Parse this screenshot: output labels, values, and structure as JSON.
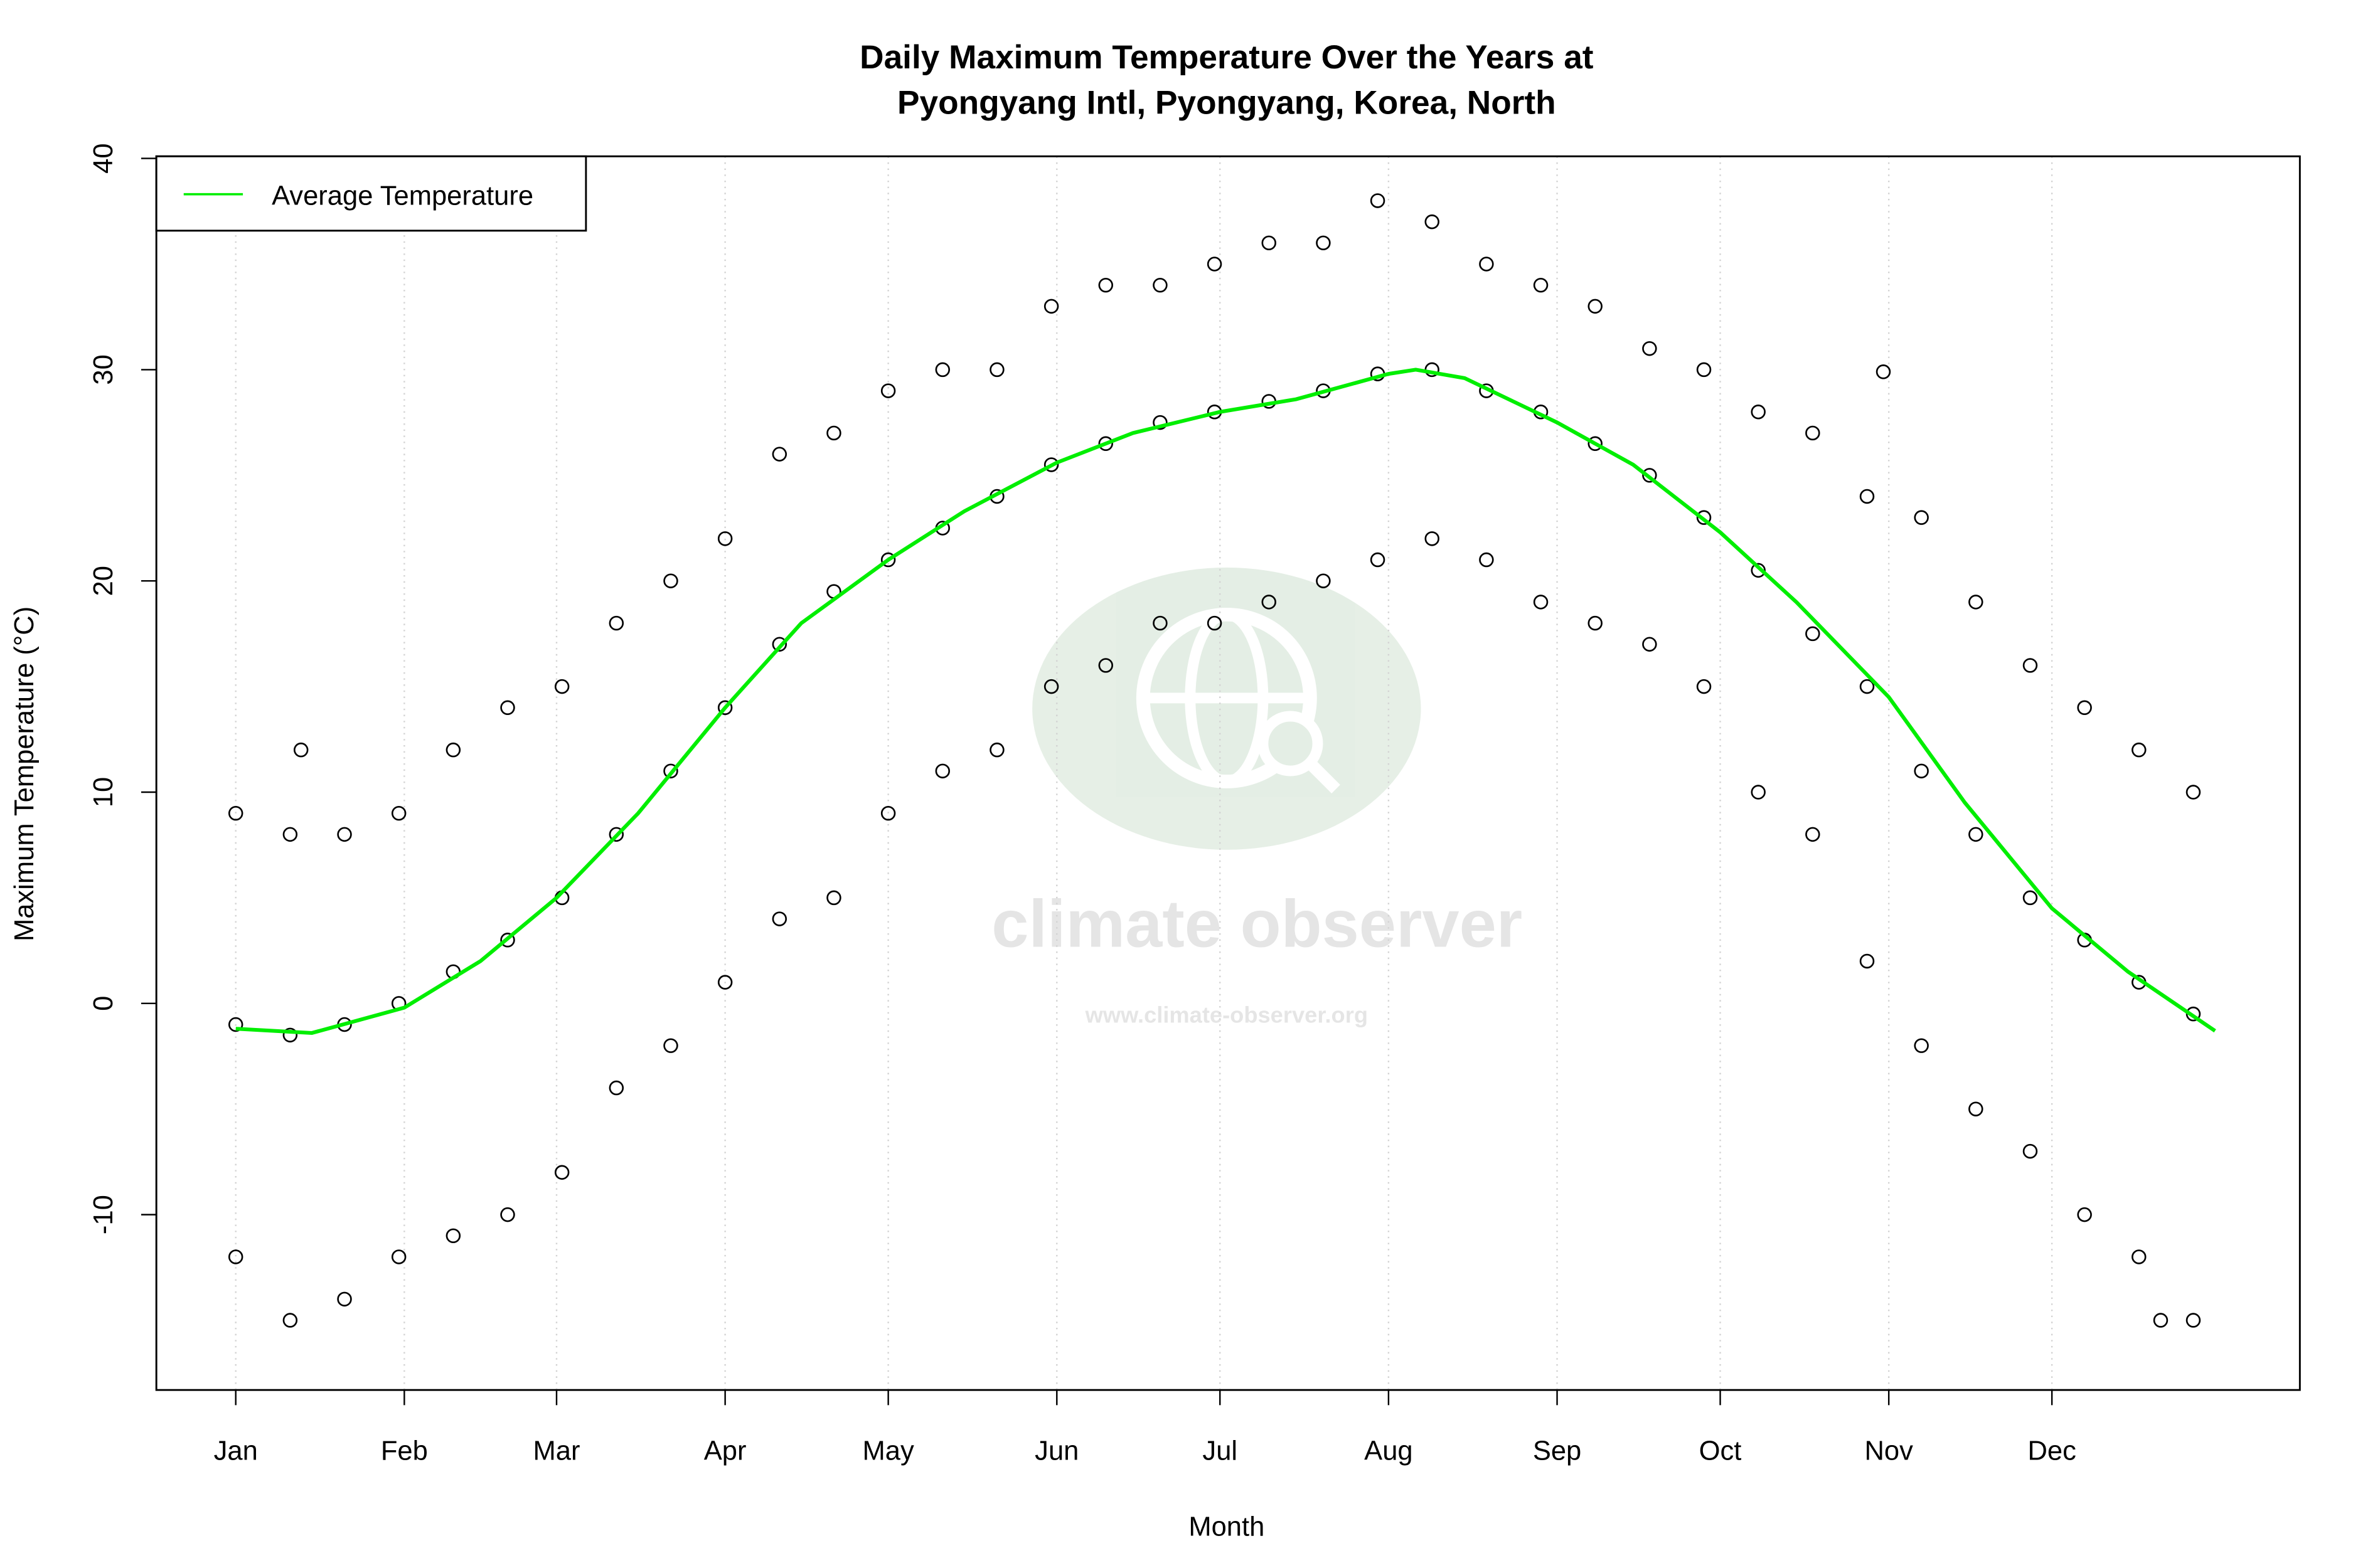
{
  "chart_data": {
    "type": "scatter",
    "title": [
      "Daily Maximum Temperature Over the Years at",
      "Pyongyang Intl, Pyongyang, Korea, North"
    ],
    "xlabel": "Month",
    "ylabel": "Maximum Temperature (°C)",
    "watermark": "climate observer",
    "watermark_url": "www.climate-observer.org",
    "xlim": [
      -13.6,
      380.6
    ],
    "ylim": [
      -18.3,
      40.1
    ],
    "xticks": [
      {
        "value": 1,
        "label": "Jan"
      },
      {
        "value": 32,
        "label": "Feb"
      },
      {
        "value": 60,
        "label": "Mar"
      },
      {
        "value": 91,
        "label": "Apr"
      },
      {
        "value": 121,
        "label": "May"
      },
      {
        "value": 152,
        "label": "Jun"
      },
      {
        "value": 182,
        "label": "Jul"
      },
      {
        "value": 213,
        "label": "Aug"
      },
      {
        "value": 244,
        "label": "Sep"
      },
      {
        "value": 274,
        "label": "Oct"
      },
      {
        "value": 305,
        "label": "Nov"
      },
      {
        "value": 335,
        "label": "Dec"
      }
    ],
    "yticks": [
      -10,
      0,
      10,
      20,
      30,
      40
    ],
    "xgrid": true,
    "legend": "top-left",
    "points": {
      "color": "#000000",
      "x": [
        1,
        1,
        1,
        11,
        11,
        11,
        21,
        21,
        21,
        31,
        31,
        31,
        41,
        41,
        41,
        51,
        51,
        51,
        61,
        61,
        61,
        71,
        71,
        71,
        81,
        81,
        81,
        91,
        91,
        91,
        101,
        101,
        101,
        111,
        111,
        111,
        121,
        121,
        121,
        131,
        131,
        131,
        141,
        141,
        141,
        151,
        151,
        151,
        161,
        161,
        161,
        171,
        171,
        171,
        181,
        181,
        181,
        191,
        191,
        191,
        201,
        201,
        201,
        211,
        211,
        211,
        221,
        221,
        221,
        231,
        231,
        231,
        241,
        241,
        241,
        251,
        251,
        251,
        261,
        261,
        261,
        271,
        271,
        271,
        281,
        281,
        281,
        291,
        291,
        291,
        301,
        301,
        301,
        311,
        311,
        311,
        321,
        321,
        321,
        331,
        331,
        331,
        341,
        341,
        341,
        351,
        351,
        351,
        361,
        361,
        361,
        13,
        304,
        355
      ],
      "y": [
        -12,
        -1,
        9,
        -15,
        -1.5,
        8,
        -14,
        -1,
        8,
        -12,
        0,
        9,
        -11,
        1.5,
        12,
        -10,
        3,
        14,
        -8,
        5,
        15,
        -4,
        8,
        18,
        -2,
        11,
        20,
        1,
        14,
        22,
        4,
        17,
        26,
        5,
        19.5,
        27,
        9,
        21,
        29,
        11,
        22.5,
        30,
        12,
        24,
        30,
        15,
        25.5,
        33,
        16,
        26.5,
        34,
        18,
        27.5,
        34,
        18,
        28,
        35,
        19,
        28.5,
        36,
        20,
        29,
        36,
        21,
        29.8,
        38,
        22,
        30,
        37,
        21,
        29,
        35,
        19,
        28,
        34,
        18,
        26.5,
        33,
        17,
        25,
        31,
        15,
        23,
        30,
        10,
        20.5,
        28,
        8,
        17.5,
        27,
        2,
        15,
        24,
        -2,
        11,
        23,
        -5,
        8,
        19,
        -7,
        5,
        16,
        -10,
        3,
        14,
        -12,
        1,
        12,
        -15,
        -0.5,
        10,
        12,
        29.9,
        -15
      ]
    },
    "average": {
      "name": "Average Temperature",
      "color": "#00ee00",
      "x": [
        1,
        15,
        32,
        46,
        60,
        75,
        91,
        105,
        121,
        135,
        152,
        166,
        182,
        196,
        213,
        218,
        227,
        244,
        258,
        274,
        288,
        305,
        319,
        335,
        349,
        365
      ],
      "values": [
        -1.2,
        -1.4,
        -0.2,
        2,
        5,
        9,
        14,
        18,
        21,
        23.3,
        25.6,
        27,
        28,
        28.6,
        29.8,
        30,
        29.6,
        27.5,
        25.5,
        22.3,
        19,
        14.5,
        9.5,
        4.5,
        1.5,
        -1.3
      ]
    }
  }
}
